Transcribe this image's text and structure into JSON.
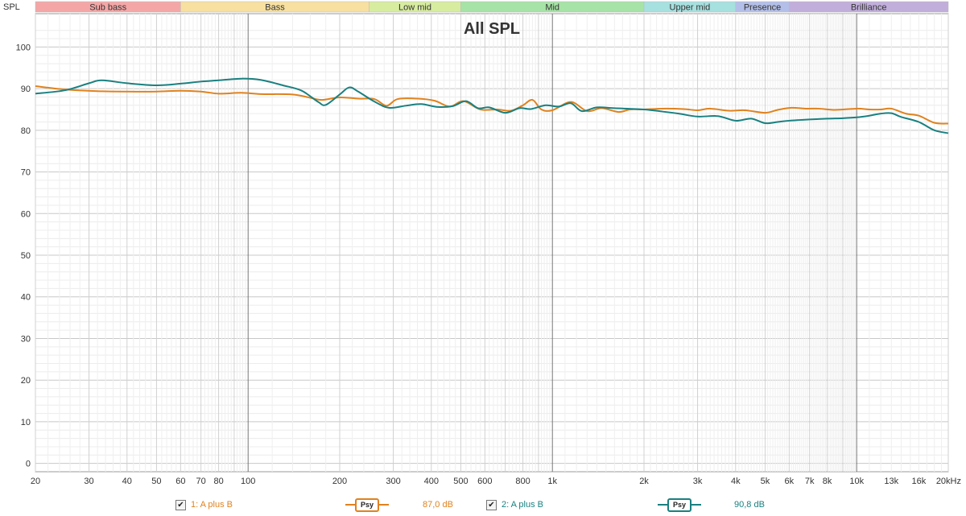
{
  "chart_data": {
    "type": "line",
    "title": "All SPL",
    "ylabel": "SPL",
    "xlabel": "",
    "x_scale": "log",
    "xlim": [
      20,
      20000
    ],
    "ylim": [
      -2,
      108
    ],
    "y_ticks": [
      0,
      10,
      20,
      30,
      40,
      50,
      60,
      70,
      80,
      90,
      100
    ],
    "x_tick_labels": [
      {
        "f": 20,
        "t": "20"
      },
      {
        "f": 30,
        "t": "30"
      },
      {
        "f": 40,
        "t": "40"
      },
      {
        "f": 50,
        "t": "50"
      },
      {
        "f": 60,
        "t": "60"
      },
      {
        "f": 70,
        "t": "70"
      },
      {
        "f": 80,
        "t": "80"
      },
      {
        "f": 100,
        "t": "100"
      },
      {
        "f": 200,
        "t": "200"
      },
      {
        "f": 300,
        "t": "300"
      },
      {
        "f": 400,
        "t": "400"
      },
      {
        "f": 500,
        "t": "500"
      },
      {
        "f": 600,
        "t": "600"
      },
      {
        "f": 800,
        "t": "800"
      },
      {
        "f": 1000,
        "t": "1k"
      },
      {
        "f": 2000,
        "t": "2k"
      },
      {
        "f": 3000,
        "t": "3k"
      },
      {
        "f": 4000,
        "t": "4k"
      },
      {
        "f": 5000,
        "t": "5k"
      },
      {
        "f": 6000,
        "t": "6k"
      },
      {
        "f": 7000,
        "t": "7k"
      },
      {
        "f": 8000,
        "t": "8k"
      },
      {
        "f": 10000,
        "t": "10k"
      },
      {
        "f": 13000,
        "t": "13k"
      },
      {
        "f": 16000,
        "t": "16k"
      },
      {
        "f": 20000,
        "t": "20kHz"
      }
    ],
    "bands": [
      {
        "name": "Sub bass",
        "from": 20,
        "to": 60,
        "color": "#f4a6a6"
      },
      {
        "name": "Bass",
        "from": 60,
        "to": 250,
        "color": "#f7e0a0"
      },
      {
        "name": "Low mid",
        "from": 250,
        "to": 500,
        "color": "#d7ec9f"
      },
      {
        "name": "Mid",
        "from": 500,
        "to": 2000,
        "color": "#a6e3a6"
      },
      {
        "name": "Upper mid",
        "from": 2000,
        "to": 4000,
        "color": "#a6e0df"
      },
      {
        "name": "Presence",
        "from": 4000,
        "to": 6000,
        "color": "#b3bfe8"
      },
      {
        "name": "Brilliance",
        "from": 6000,
        "to": 20000,
        "color": "#c2aedb"
      }
    ],
    "grid": true,
    "series": [
      {
        "name": "1: A plus B",
        "color": "#e0821e",
        "points": [
          [
            20,
            90.6
          ],
          [
            25,
            89.8
          ],
          [
            32,
            89.4
          ],
          [
            40,
            89.3
          ],
          [
            50,
            89.3
          ],
          [
            60,
            89.5
          ],
          [
            70,
            89.3
          ],
          [
            80,
            88.8
          ],
          [
            95,
            89.0
          ],
          [
            110,
            88.7
          ],
          [
            140,
            88.6
          ],
          [
            160,
            87.8
          ],
          [
            175,
            87.3
          ],
          [
            200,
            87.9
          ],
          [
            230,
            87.6
          ],
          [
            260,
            87.5
          ],
          [
            285,
            85.9
          ],
          [
            310,
            87.5
          ],
          [
            360,
            87.6
          ],
          [
            410,
            87.1
          ],
          [
            460,
            85.7
          ],
          [
            510,
            87.0
          ],
          [
            580,
            85.0
          ],
          [
            660,
            85.0
          ],
          [
            730,
            84.7
          ],
          [
            800,
            86.0
          ],
          [
            860,
            87.3
          ],
          [
            920,
            85.0
          ],
          [
            1000,
            84.8
          ],
          [
            1150,
            86.8
          ],
          [
            1300,
            84.6
          ],
          [
            1450,
            85.3
          ],
          [
            1650,
            84.4
          ],
          [
            1800,
            85.0
          ],
          [
            2000,
            85.0
          ],
          [
            2300,
            85.2
          ],
          [
            2700,
            85.1
          ],
          [
            3000,
            84.8
          ],
          [
            3300,
            85.2
          ],
          [
            3800,
            84.7
          ],
          [
            4300,
            84.8
          ],
          [
            5000,
            84.2
          ],
          [
            5500,
            84.9
          ],
          [
            6100,
            85.4
          ],
          [
            6800,
            85.2
          ],
          [
            7500,
            85.2
          ],
          [
            8500,
            84.9
          ],
          [
            10000,
            85.2
          ],
          [
            11000,
            85.0
          ],
          [
            12000,
            85.0
          ],
          [
            13000,
            85.2
          ],
          [
            14500,
            84.0
          ],
          [
            16000,
            83.5
          ],
          [
            18000,
            81.8
          ],
          [
            20000,
            81.6
          ]
        ]
      },
      {
        "name": "2: A plus B",
        "color": "#1a8080",
        "points": [
          [
            20,
            88.8
          ],
          [
            25,
            89.6
          ],
          [
            30,
            91.3
          ],
          [
            33,
            92.0
          ],
          [
            40,
            91.3
          ],
          [
            50,
            90.8
          ],
          [
            60,
            91.2
          ],
          [
            70,
            91.7
          ],
          [
            80,
            92.0
          ],
          [
            95,
            92.4
          ],
          [
            110,
            92.1
          ],
          [
            130,
            90.8
          ],
          [
            150,
            89.5
          ],
          [
            170,
            86.8
          ],
          [
            180,
            86.1
          ],
          [
            200,
            88.6
          ],
          [
            215,
            90.3
          ],
          [
            230,
            89.3
          ],
          [
            260,
            86.9
          ],
          [
            290,
            85.4
          ],
          [
            330,
            85.9
          ],
          [
            370,
            86.3
          ],
          [
            420,
            85.6
          ],
          [
            470,
            85.8
          ],
          [
            520,
            87.0
          ],
          [
            570,
            85.3
          ],
          [
            620,
            85.5
          ],
          [
            700,
            84.2
          ],
          [
            780,
            85.3
          ],
          [
            850,
            85.1
          ],
          [
            950,
            86.0
          ],
          [
            1050,
            85.7
          ],
          [
            1150,
            86.5
          ],
          [
            1250,
            84.6
          ],
          [
            1400,
            85.5
          ],
          [
            1600,
            85.3
          ],
          [
            2000,
            85.0
          ],
          [
            2300,
            84.5
          ],
          [
            2600,
            84.0
          ],
          [
            3000,
            83.3
          ],
          [
            3500,
            83.4
          ],
          [
            4000,
            82.3
          ],
          [
            4500,
            82.8
          ],
          [
            5000,
            81.7
          ],
          [
            5500,
            82.0
          ],
          [
            6000,
            82.3
          ],
          [
            7000,
            82.6
          ],
          [
            8000,
            82.8
          ],
          [
            9000,
            82.9
          ],
          [
            10000,
            83.1
          ],
          [
            11000,
            83.5
          ],
          [
            12000,
            84.0
          ],
          [
            13000,
            84.1
          ],
          [
            14000,
            83.2
          ],
          [
            16000,
            82.0
          ],
          [
            18000,
            80.0
          ],
          [
            20000,
            79.3
          ]
        ]
      }
    ]
  },
  "legend": [
    {
      "checked_glyph": "✔",
      "label": "1: A plus B",
      "psy_label": "Psy",
      "value": "87,0 dB",
      "color": "#e0821e"
    },
    {
      "checked_glyph": "✔",
      "label": "2: A plus B",
      "psy_label": "Psy",
      "value": "90,8 dB",
      "color": "#1a8080"
    }
  ]
}
